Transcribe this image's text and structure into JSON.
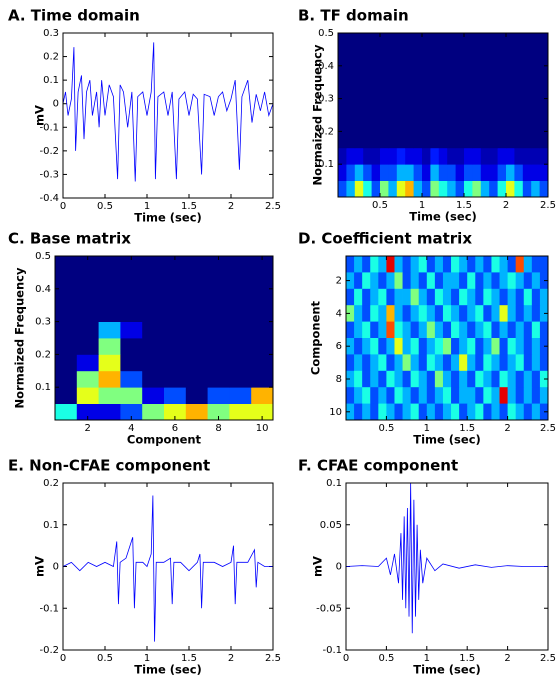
{
  "chart_data": [
    {
      "type": "line",
      "title": "A. Time domain",
      "xlabel": "Time (sec)",
      "ylabel": "mV",
      "xlim": [
        0,
        2.5
      ],
      "xticks": [
        0,
        0.5,
        1,
        1.5,
        2,
        2.5
      ],
      "ylim": [
        -0.4,
        0.3
      ],
      "yticks": [
        -0.4,
        -0.3,
        -0.2,
        -0.1,
        0,
        0.1,
        0.2,
        0.3
      ],
      "color": "#0000ff",
      "x": [
        0,
        0.03,
        0.06,
        0.1,
        0.13,
        0.15,
        0.18,
        0.22,
        0.25,
        0.28,
        0.32,
        0.35,
        0.4,
        0.43,
        0.46,
        0.5,
        0.55,
        0.6,
        0.65,
        0.68,
        0.72,
        0.77,
        0.82,
        0.86,
        0.89,
        0.95,
        1.0,
        1.05,
        1.08,
        1.1,
        1.13,
        1.2,
        1.25,
        1.3,
        1.35,
        1.38,
        1.45,
        1.5,
        1.55,
        1.6,
        1.65,
        1.68,
        1.75,
        1.8,
        1.85,
        1.9,
        1.95,
        2.0,
        2.05,
        2.1,
        2.13,
        2.2,
        2.25,
        2.3,
        2.35,
        2.4,
        2.45,
        2.5
      ],
      "values": [
        0,
        0.05,
        -0.05,
        0.02,
        0.24,
        -0.2,
        0.05,
        0.12,
        -0.15,
        0.05,
        0.1,
        -0.05,
        0.05,
        -0.1,
        0.1,
        -0.05,
        0.08,
        0.03,
        -0.32,
        0.08,
        0.05,
        -0.1,
        0.05,
        -0.33,
        0.03,
        0.05,
        -0.05,
        0.05,
        0.26,
        -0.32,
        0.03,
        0.05,
        -0.05,
        0.05,
        -0.32,
        0.02,
        0.05,
        -0.05,
        0.04,
        0.02,
        -0.3,
        0.04,
        0.03,
        -0.05,
        0.03,
        0.05,
        -0.03,
        0.02,
        0.1,
        -0.28,
        0.03,
        0.1,
        -0.08,
        0.04,
        -0.03,
        0.05,
        -0.05,
        0
      ]
    },
    {
      "type": "heatmap",
      "title": "B. TF domain",
      "xlabel": "Time (sec)",
      "ylabel": "Normaized Frequency",
      "colormap": "jet",
      "xlim": [
        0,
        2.5
      ],
      "xticks": [
        0.5,
        1,
        1.5,
        2,
        2.5
      ],
      "ylim": [
        0,
        0.5
      ],
      "yticks": [
        0.1,
        0.2,
        0.3,
        0.4,
        0.5
      ],
      "y_reversed": false,
      "z": [
        [
          0.2,
          0.3,
          0.6,
          0.4,
          0.2,
          0.5,
          0.3,
          0.6,
          0.7,
          0.3,
          0.2,
          0.5,
          0.4,
          0.3,
          0.2,
          0.4,
          0.5,
          0.3,
          0.2,
          0.4,
          0.6,
          0.4,
          0.2,
          0.3,
          0.2
        ],
        [
          0.1,
          0.2,
          0.3,
          0.2,
          0.1,
          0.2,
          0.2,
          0.3,
          0.3,
          0.2,
          0.1,
          0.3,
          0.2,
          0.2,
          0.1,
          0.2,
          0.2,
          0.1,
          0.1,
          0.2,
          0.3,
          0.2,
          0.1,
          0.1,
          0.1
        ],
        [
          0.05,
          0.1,
          0.1,
          0.05,
          0.05,
          0.1,
          0.1,
          0.15,
          0.1,
          0.1,
          0.05,
          0.15,
          0.1,
          0.05,
          0.05,
          0.1,
          0.1,
          0.05,
          0.05,
          0.1,
          0.1,
          0.05,
          0.05,
          0.05,
          0.05
        ],
        [
          0,
          0,
          0,
          0,
          0,
          0,
          0,
          0,
          0,
          0,
          0,
          0,
          0,
          0,
          0,
          0,
          0,
          0,
          0,
          0,
          0,
          0,
          0,
          0,
          0
        ],
        [
          0,
          0,
          0,
          0,
          0,
          0,
          0,
          0,
          0,
          0,
          0,
          0,
          0,
          0,
          0,
          0,
          0,
          0,
          0,
          0,
          0,
          0,
          0,
          0,
          0
        ],
        [
          0,
          0,
          0,
          0,
          0,
          0,
          0,
          0,
          0,
          0,
          0,
          0,
          0,
          0,
          0,
          0,
          0,
          0,
          0,
          0,
          0,
          0,
          0,
          0,
          0
        ],
        [
          0,
          0,
          0,
          0,
          0,
          0,
          0,
          0,
          0,
          0,
          0,
          0,
          0,
          0,
          0,
          0,
          0,
          0,
          0,
          0,
          0,
          0,
          0,
          0,
          0
        ],
        [
          0,
          0,
          0,
          0,
          0,
          0,
          0,
          0,
          0,
          0,
          0,
          0,
          0,
          0,
          0,
          0,
          0,
          0,
          0,
          0,
          0,
          0,
          0,
          0,
          0
        ],
        [
          0,
          0,
          0,
          0,
          0,
          0,
          0,
          0,
          0,
          0,
          0,
          0,
          0,
          0,
          0,
          0,
          0,
          0,
          0,
          0,
          0,
          0,
          0,
          0,
          0
        ],
        [
          0,
          0,
          0,
          0,
          0,
          0,
          0,
          0,
          0,
          0,
          0,
          0,
          0,
          0,
          0,
          0,
          0,
          0,
          0,
          0,
          0,
          0,
          0,
          0,
          0
        ]
      ]
    },
    {
      "type": "heatmap",
      "title": "C. Base matrix",
      "xlabel": "Component",
      "ylabel": "Normaized Frequency",
      "colormap": "jet",
      "xlim": [
        0.5,
        10.5
      ],
      "xticks": [
        2,
        4,
        6,
        8,
        10
      ],
      "ylim": [
        0,
        0.5
      ],
      "yticks": [
        0.1,
        0.2,
        0.3,
        0.4,
        0.5
      ],
      "y_reversed": false,
      "z": [
        [
          0.4,
          0.1,
          0.1,
          0.2,
          0.5,
          0.6,
          0.7,
          0.5,
          0.6,
          0.6
        ],
        [
          0,
          0.6,
          0.5,
          0.5,
          0.1,
          0.2,
          0,
          0.2,
          0.2,
          0.7
        ],
        [
          0,
          0.5,
          0.7,
          0.2,
          0,
          0,
          0,
          0,
          0,
          0
        ],
        [
          0,
          0.1,
          0.6,
          0,
          0,
          0,
          0,
          0,
          0,
          0
        ],
        [
          0,
          0,
          0.5,
          0,
          0,
          0,
          0,
          0,
          0,
          0
        ],
        [
          0,
          0,
          0.3,
          0.1,
          0,
          0,
          0,
          0,
          0,
          0
        ],
        [
          0,
          0,
          0,
          0,
          0,
          0,
          0,
          0,
          0,
          0
        ],
        [
          0,
          0,
          0,
          0,
          0,
          0,
          0,
          0,
          0,
          0
        ],
        [
          0,
          0,
          0,
          0,
          0,
          0,
          0,
          0,
          0,
          0
        ],
        [
          0,
          0,
          0,
          0,
          0,
          0,
          0,
          0,
          0,
          0
        ]
      ]
    },
    {
      "type": "heatmap",
      "title": "D. Coefficient matrix",
      "xlabel": "Time (sec)",
      "ylabel": "Component",
      "colormap": "jet",
      "xlim": [
        0,
        2.5
      ],
      "xticks": [
        0.5,
        1,
        1.5,
        2,
        2.5
      ],
      "ylim": [
        0.5,
        10.5
      ],
      "yticks": [
        2,
        4,
        6,
        8,
        10
      ],
      "y_reversed": true,
      "z": [
        [
          0.2,
          0.3,
          0.2,
          0.4,
          0.3,
          0.9,
          0.3,
          0.2,
          0.3,
          0.4,
          0.2,
          0.3,
          0.2,
          0.4,
          0.3,
          0.2,
          0.3,
          0.2,
          0.4,
          0.3,
          0.2,
          0.8,
          0.3,
          0.2,
          0.2
        ],
        [
          0.3,
          0.2,
          0.4,
          0.3,
          0.2,
          0.3,
          0.5,
          0.2,
          0.3,
          0.2,
          0.4,
          0.2,
          0.3,
          0.3,
          0.2,
          0.4,
          0.2,
          0.3,
          0.2,
          0.3,
          0.4,
          0.3,
          0.2,
          0.3,
          0.2
        ],
        [
          0.2,
          0.4,
          0.2,
          0.3,
          0.4,
          0.2,
          0.3,
          0.3,
          0.5,
          0.3,
          0.2,
          0.4,
          0.3,
          0.2,
          0.4,
          0.3,
          0.2,
          0.4,
          0.3,
          0.2,
          0.3,
          0.2,
          0.4,
          0.2,
          0.3
        ],
        [
          0.5,
          0.3,
          0.2,
          0.4,
          0.3,
          0.7,
          0.3,
          0.2,
          0.3,
          0.4,
          0.3,
          0.2,
          0.4,
          0.3,
          0.2,
          0.3,
          0.4,
          0.2,
          0.3,
          0.6,
          0.3,
          0.2,
          0.3,
          0.2,
          0.3
        ],
        [
          0.2,
          0.3,
          0.4,
          0.2,
          0.3,
          0.8,
          0.4,
          0.3,
          0.2,
          0.3,
          0.5,
          0.3,
          0.2,
          0.4,
          0.3,
          0.2,
          0.3,
          0.4,
          0.2,
          0.3,
          0.2,
          0.3,
          0.2,
          0.4,
          0.2
        ],
        [
          0.3,
          0.2,
          0.3,
          0.4,
          0.2,
          0.3,
          0.6,
          0.3,
          0.4,
          0.2,
          0.3,
          0.4,
          0.5,
          0.2,
          0.3,
          0.4,
          0.2,
          0.3,
          0.5,
          0.2,
          0.4,
          0.3,
          0.2,
          0.3,
          0.2
        ],
        [
          0.2,
          0.3,
          0.2,
          0.3,
          0.4,
          0.2,
          0.3,
          0.5,
          0.3,
          0.2,
          0.4,
          0.3,
          0.2,
          0.3,
          0.6,
          0.3,
          0.2,
          0.4,
          0.3,
          0.2,
          0.3,
          0.4,
          0.2,
          0.3,
          0.2
        ],
        [
          0.3,
          0.4,
          0.2,
          0.3,
          0.2,
          0.4,
          0.3,
          0.2,
          0.4,
          0.3,
          0.2,
          0.5,
          0.3,
          0.2,
          0.3,
          0.2,
          0.4,
          0.3,
          0.2,
          0.4,
          0.3,
          0.2,
          0.3,
          0.2,
          0.4
        ],
        [
          0.2,
          0.3,
          0.4,
          0.2,
          0.3,
          0.2,
          0.4,
          0.3,
          0.2,
          0.3,
          0.2,
          0.3,
          0.4,
          0.2,
          0.3,
          0.3,
          0.2,
          0.4,
          0.3,
          0.9,
          0.3,
          0.2,
          0.3,
          0.2,
          0.3
        ],
        [
          0.3,
          0.2,
          0.3,
          0.2,
          0.4,
          0.3,
          0.2,
          0.3,
          0.4,
          0.2,
          0.3,
          0.2,
          0.3,
          0.4,
          0.2,
          0.3,
          0.4,
          0.2,
          0.3,
          0.2,
          0.4,
          0.3,
          0.2,
          0.3,
          0.2
        ]
      ]
    },
    {
      "type": "line",
      "title": "E. Non-CFAE component",
      "xlabel": "Time (sec)",
      "ylabel": "mV",
      "xlim": [
        0,
        2.5
      ],
      "xticks": [
        0,
        0.5,
        1,
        1.5,
        2,
        2.5
      ],
      "ylim": [
        -0.2,
        0.2
      ],
      "yticks": [
        -0.2,
        -0.1,
        0,
        0.1,
        0.2
      ],
      "color": "#0000ff",
      "x": [
        0,
        0.1,
        0.2,
        0.3,
        0.4,
        0.5,
        0.6,
        0.64,
        0.66,
        0.68,
        0.75,
        0.83,
        0.85,
        0.87,
        0.95,
        1.0,
        1.05,
        1.07,
        1.09,
        1.11,
        1.2,
        1.28,
        1.3,
        1.32,
        1.4,
        1.5,
        1.6,
        1.63,
        1.65,
        1.67,
        1.8,
        1.9,
        2.0,
        2.03,
        2.05,
        2.07,
        2.2,
        2.28,
        2.3,
        2.32,
        2.4,
        2.5
      ],
      "values": [
        0,
        0.01,
        -0.01,
        0.01,
        0,
        0.01,
        0,
        0.06,
        -0.09,
        0.01,
        0.02,
        0.07,
        -0.1,
        0.01,
        0.01,
        0,
        0.03,
        0.17,
        -0.18,
        0.01,
        0.01,
        0.02,
        -0.09,
        0.01,
        0.01,
        -0.01,
        0.01,
        0.03,
        -0.1,
        0.01,
        0.01,
        0,
        0.01,
        0.05,
        -0.09,
        0.01,
        0.01,
        0.04,
        -0.05,
        0.01,
        0,
        0
      ]
    },
    {
      "type": "line",
      "title": "F. CFAE component",
      "xlabel": "Time (sec)",
      "ylabel": "mV",
      "xlim": [
        0,
        2.5
      ],
      "xticks": [
        0,
        0.5,
        1,
        1.5,
        2,
        2.5
      ],
      "ylim": [
        -0.1,
        0.1
      ],
      "yticks": [
        -0.1,
        -0.05,
        0,
        0.05,
        0.1
      ],
      "color": "#0000ff",
      "x": [
        0,
        0.2,
        0.4,
        0.5,
        0.55,
        0.6,
        0.65,
        0.68,
        0.7,
        0.72,
        0.74,
        0.76,
        0.78,
        0.8,
        0.82,
        0.84,
        0.86,
        0.88,
        0.9,
        0.92,
        0.95,
        1.0,
        1.1,
        1.2,
        1.4,
        1.6,
        1.8,
        2.0,
        2.2,
        2.5
      ],
      "values": [
        0,
        0.001,
        0,
        0.01,
        -0.01,
        0.015,
        -0.02,
        0.04,
        -0.04,
        0.06,
        -0.05,
        0.07,
        -0.06,
        0.1,
        -0.08,
        0.08,
        -0.06,
        0.05,
        -0.04,
        0.02,
        -0.02,
        0.01,
        -0.005,
        0.003,
        -0.002,
        0.002,
        -0.001,
        0.001,
        0,
        0
      ]
    }
  ]
}
